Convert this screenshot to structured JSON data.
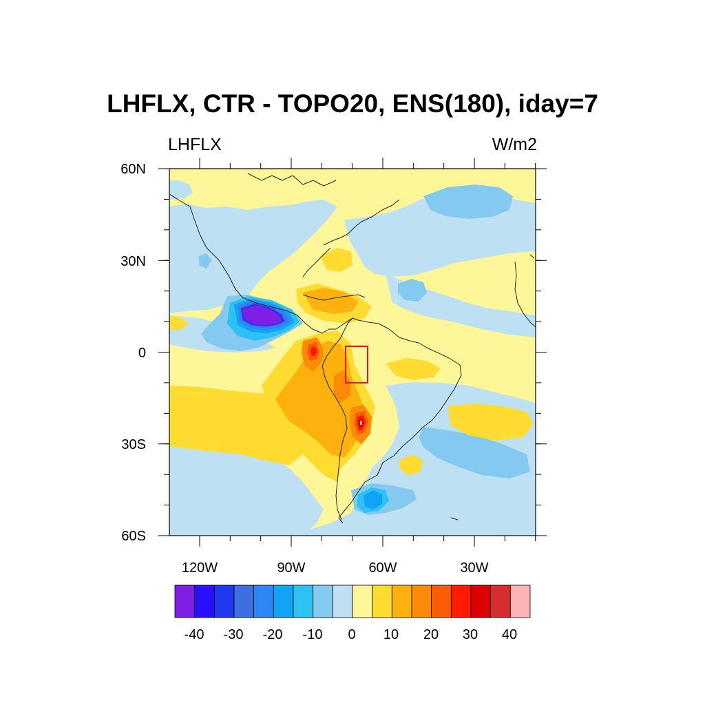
{
  "title": "LHFLX, CTR - TOPO20, ENS(180), iday=7",
  "left_subtitle": "LHFLX",
  "right_subtitle": "W/m2",
  "lat_ticks": [
    "60N",
    "30N",
    "0",
    "30S",
    "60S"
  ],
  "lon_ticks": [
    "120W",
    "90W",
    "60W",
    "30W"
  ],
  "colorbar": {
    "colors": [
      "#7f1fe6",
      "#2b0fff",
      "#1f38f0",
      "#3d6fe0",
      "#2f86f7",
      "#12a3f5",
      "#2ec1f3",
      "#84c9ef",
      "#bde0f3",
      "#fef79a",
      "#fedc32",
      "#fdb10c",
      "#fb8b08",
      "#fb5d07",
      "#ff1a00",
      "#dc0000",
      "#d62d2f",
      "#fdb4b4"
    ],
    "labels": [
      "-40",
      "-30",
      "-20",
      "-10",
      "0",
      "10",
      "20",
      "30",
      "40"
    ]
  },
  "highlight_box_color": "#e01818"
}
